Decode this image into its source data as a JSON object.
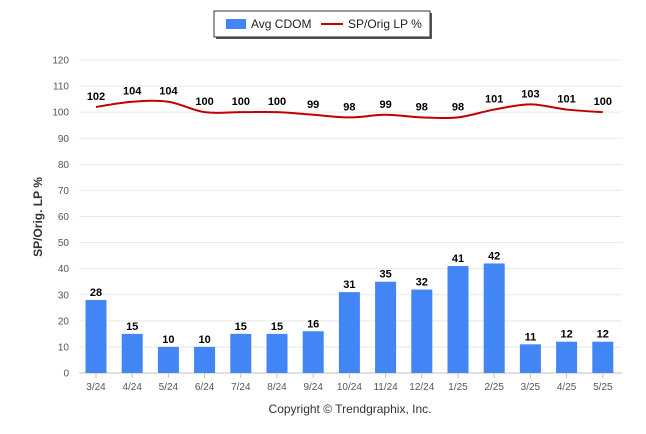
{
  "chart_data": {
    "type": "bar",
    "categories": [
      "3/24",
      "4/24",
      "5/24",
      "6/24",
      "7/24",
      "8/24",
      "9/24",
      "10/24",
      "11/24",
      "12/24",
      "1/25",
      "2/25",
      "3/25",
      "4/25",
      "5/25"
    ],
    "series": [
      {
        "name": "Avg CDOM",
        "type": "bar",
        "color": "#4285f4",
        "values": [
          28,
          15,
          10,
          10,
          15,
          15,
          16,
          31,
          35,
          32,
          41,
          42,
          11,
          12,
          12
        ]
      },
      {
        "name": "SP/Orig LP %",
        "type": "line",
        "color": "#c00000",
        "values": [
          102,
          104,
          104,
          100,
          100,
          100,
          99,
          98,
          99,
          98,
          98,
          101,
          103,
          101,
          100
        ]
      }
    ],
    "ylabel": "SP/Orig. LP %",
    "ylim": [
      0,
      120
    ],
    "yticks": [
      0,
      10,
      20,
      30,
      40,
      50,
      60,
      70,
      80,
      90,
      100,
      110,
      120
    ],
    "grid": true,
    "legend": "top-center"
  },
  "footer": {
    "copyright": "Copyright © Trendgraphix, Inc."
  }
}
